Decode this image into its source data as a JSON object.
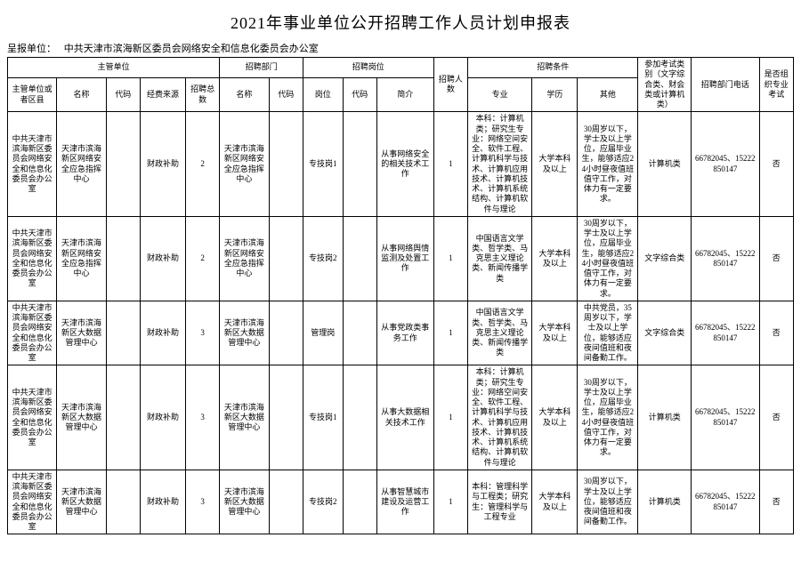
{
  "title": "2021年事业单位公开招聘工作人员计划申报表",
  "reporter_label": "呈报单位：",
  "reporter_value": "中共天津市滨海新区委员会网络安全和信息化委员会办公室",
  "headers": {
    "host_unit": "主管单位",
    "recruit_dept": "招聘部门",
    "recruit_post": "招聘岗位",
    "recruit_count": "招聘人数",
    "recruit_cond": "招聘条件",
    "exam_type": "参加考试类别（文字综合类、财会类或计算机类）",
    "tel": "招聘部门电话",
    "pro_exam": "是否组织专业考试",
    "sup_or_district": "主管单位或者区县",
    "name": "名称",
    "code": "代码",
    "fund": "经费来源",
    "total": "招聘总数",
    "post": "岗位",
    "brief": "简介",
    "major": "专业",
    "edu": "学历",
    "other": "其他"
  },
  "rows": [
    {
      "sup": "中共天津市滨海新区委员会网络安全和信息化委员会办公室",
      "nm": "天津市滨海新区网络安全应急指挥中心",
      "cd": "",
      "fund": "财政补助",
      "total": "2",
      "dnm": "天津市滨海新区网络安全应急指挥中心",
      "dcd": "",
      "post": "专技岗1",
      "pcd": "",
      "brief": "从事网络安全的相关技术工作",
      "cnt": "1",
      "major": "本科：计算机类；研究生专业：网络空间安全、软件工程、计算机科学与技术、计算机应用技术、计算机技术、计算机系统结构、计算机软件与理论",
      "edu": "大学本科及以上",
      "oth": "30周岁以下，学士及以上学位，应届毕业生，能够适应24小时昼夜值班值守工作，对体力有一定要求。",
      "exam": "计算机类",
      "tel": "66782045、15222850147",
      "pro": "否"
    },
    {
      "sup": "中共天津市滨海新区委员会网络安全和信息化委员会办公室",
      "nm": "天津市滨海新区网络安全应急指挥中心",
      "cd": "",
      "fund": "财政补助",
      "total": "2",
      "dnm": "天津市滨海新区网络安全应急指挥中心",
      "dcd": "",
      "post": "专技岗2",
      "pcd": "",
      "brief": "从事网络舆情监测及处置工作",
      "cnt": "1",
      "major": "中国语言文学类、哲学类、马克思主义理论类、新闻传播学类",
      "edu": "大学本科及以上",
      "oth": "30周岁以下，学士及以上学位，应届毕业生，能够适应24小时昼夜值班值守工作，对体力有一定要求。",
      "exam": "文字综合类",
      "tel": "66782045、15222850147",
      "pro": "否"
    },
    {
      "sup": "中共天津市滨海新区委员会网络安全和信息化委员会办公室",
      "nm": "天津市滨海新区大数据管理中心",
      "cd": "",
      "fund": "财政补助",
      "total": "3",
      "dnm": "天津市滨海新区大数据管理中心",
      "dcd": "",
      "post": "管理岗",
      "pcd": "",
      "brief": "从事党政类事务工作",
      "cnt": "1",
      "major": "中国语言文学类、哲学类、马克思主义理论类、新闻传播学类",
      "edu": "大学本科及以上",
      "oth": "中共党员，35周岁以下，学士及以上学位，能够适应夜间值班和夜间备勤工作。",
      "exam": "文字综合类",
      "tel": "66782045、15222850147",
      "pro": "否"
    },
    {
      "sup": "中共天津市滨海新区委员会网络安全和信息化委员会办公室",
      "nm": "天津市滨海新区大数据管理中心",
      "cd": "",
      "fund": "财政补助",
      "total": "3",
      "dnm": "天津市滨海新区大数据管理中心",
      "dcd": "",
      "post": "专技岗1",
      "pcd": "",
      "brief": "从事大数据相关技术工作",
      "cnt": "1",
      "major": "本科：计算机类；研究生专业：网络空间安全、软件工程、计算机科学与技术、计算机应用技术、计算机技术、计算机系统结构、计算机软件与理论",
      "edu": "大学本科及以上",
      "oth": "30周岁以下，学士及以上学位，应届毕业生，能够适应24小时昼夜值班值守工作，对体力有一定要求。",
      "exam": "计算机类",
      "tel": "66782045、15222850147",
      "pro": "否"
    },
    {
      "sup": "中共天津市滨海新区委员会网络安全和信息化委员会办公室",
      "nm": "天津市滨海新区大数据管理中心",
      "cd": "",
      "fund": "财政补助",
      "total": "3",
      "dnm": "天津市滨海新区大数据管理中心",
      "dcd": "",
      "post": "专技岗2",
      "pcd": "",
      "brief": "从事智慧城市建设及运营工作",
      "cnt": "1",
      "major": "本科：管理科学与工程类；研究生：管理科学与工程专业",
      "edu": "大学本科及以上",
      "oth": "30周岁以下，学士及以上学位，能够适应夜间值班和夜间备勤工作。",
      "exam": "计算机类",
      "tel": "66782045、15222850147",
      "pro": "否"
    }
  ]
}
